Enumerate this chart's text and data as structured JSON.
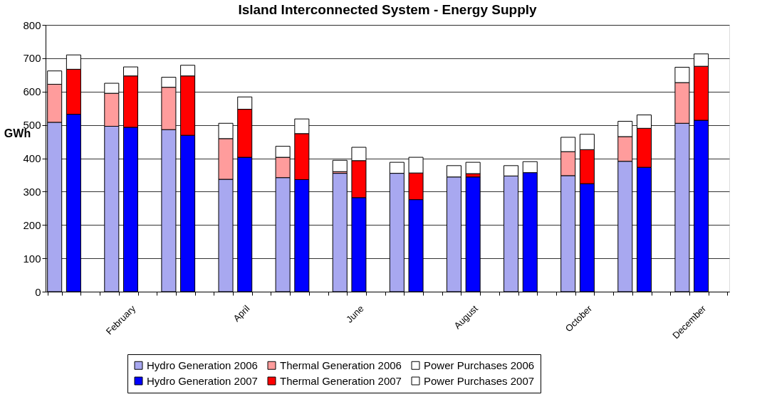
{
  "chart_data": {
    "type": "bar",
    "title": "Island Interconnected System - Energy Supply",
    "ylabel": "GWh",
    "categories": [
      null,
      null,
      null,
      null,
      "February",
      null,
      null,
      null,
      null,
      null,
      "April",
      null,
      null,
      null,
      null,
      null,
      "June",
      null,
      null,
      null,
      null,
      null,
      "August",
      null,
      null,
      null,
      null,
      null,
      "October",
      null,
      null,
      null,
      null,
      null,
      "December",
      null
    ],
    "stacked": true,
    "series": [
      {
        "name": "Hydro Generation 2006",
        "color": "#a8a8f0",
        "values": [
          508,
          null,
          null,
          496,
          null,
          null,
          486,
          null,
          null,
          337,
          null,
          null,
          342,
          null,
          null,
          355,
          null,
          null,
          355,
          null,
          null,
          344,
          null,
          null,
          347,
          null,
          null,
          348,
          null,
          null,
          391,
          null,
          null,
          505,
          null,
          null
        ]
      },
      {
        "name": "Thermal Generation 2006",
        "color": "#ff9c9c",
        "values": [
          114,
          null,
          null,
          99,
          null,
          null,
          127,
          null,
          null,
          122,
          null,
          null,
          61,
          null,
          null,
          5,
          null,
          null,
          null,
          null,
          null,
          null,
          null,
          null,
          null,
          null,
          null,
          72,
          null,
          null,
          74,
          null,
          null,
          122,
          null,
          null
        ]
      },
      {
        "name": "Power Purchases 2006",
        "color": "#ffffff",
        "values": [
          40,
          null,
          null,
          30,
          null,
          null,
          30,
          null,
          null,
          46,
          null,
          null,
          33,
          null,
          null,
          34,
          null,
          null,
          33,
          null,
          null,
          34,
          null,
          null,
          31,
          null,
          null,
          43,
          null,
          null,
          46,
          null,
          null,
          46,
          null,
          null
        ]
      },
      {
        "name": "Hydro Generation 2007",
        "color": "#0000ff",
        "values": [
          null,
          532,
          null,
          null,
          493,
          null,
          null,
          469,
          null,
          null,
          403,
          null,
          null,
          336,
          null,
          null,
          282,
          null,
          null,
          276,
          null,
          null,
          344,
          null,
          null,
          357,
          null,
          null,
          324,
          null,
          null,
          373,
          null,
          null,
          514,
          null
        ]
      },
      {
        "name": "Thermal Generation 2007",
        "color": "#ff0000",
        "values": [
          null,
          135,
          null,
          null,
          154,
          null,
          null,
          178,
          null,
          null,
          144,
          null,
          null,
          138,
          null,
          null,
          111,
          null,
          null,
          80,
          null,
          null,
          10,
          null,
          null,
          null,
          null,
          null,
          102,
          null,
          null,
          117,
          null,
          null,
          162,
          null
        ]
      },
      {
        "name": "Power Purchases 2007",
        "color": "#ffffff",
        "values": [
          null,
          43,
          null,
          null,
          27,
          null,
          null,
          32,
          null,
          null,
          37,
          null,
          null,
          44,
          null,
          null,
          40,
          null,
          null,
          47,
          null,
          null,
          34,
          null,
          null,
          33,
          null,
          null,
          46,
          null,
          null,
          40,
          null,
          null,
          37,
          null
        ]
      }
    ],
    "ylim": [
      0,
      800
    ],
    "yticks": [
      0,
      100,
      200,
      300,
      400,
      500,
      600,
      700,
      800
    ],
    "grid": "y",
    "legend": "bottom"
  }
}
